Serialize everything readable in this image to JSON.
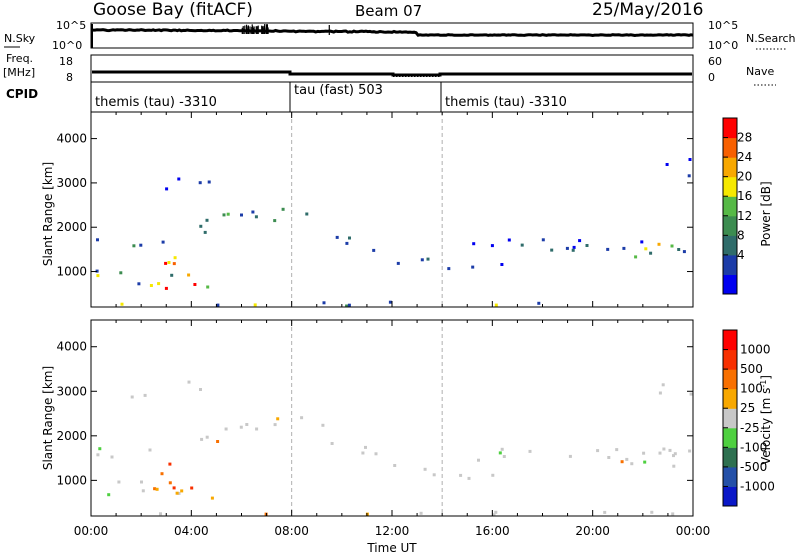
{
  "header": {
    "station": "Goose Bay (fitACF)",
    "beam": "Beam 07",
    "date": "25/May/2016"
  },
  "chart_data": [
    {
      "type": "line",
      "panel": "noise",
      "left_label": "N.Sky",
      "right_label": "N.Search",
      "left_ticks": [
        "10^5",
        "10^0"
      ],
      "right_ticks": [
        "10^5",
        "10^0"
      ],
      "yscale": "log"
    },
    {
      "type": "line",
      "panel": "frequency",
      "left_label": "Freq.",
      "left_unit": "[MHz]",
      "right_label": "Nave",
      "left_ticks": [
        "18",
        "8"
      ],
      "right_ticks": [
        "60",
        "0"
      ]
    },
    {
      "type": "table",
      "panel": "cpid",
      "label": "CPID",
      "segments": [
        {
          "start": "00:00",
          "end": "08:00",
          "text": "themis (tau) -3310"
        },
        {
          "start": "08:00",
          "end": "14:00",
          "text": "tau (fast) 503"
        },
        {
          "start": "14:00",
          "end": "24:00",
          "text": "themis (tau) -3310"
        }
      ]
    },
    {
      "type": "heatmap",
      "panel": "power",
      "ylabel": "Slant Range [km]",
      "xlim": [
        0,
        24
      ],
      "ylim": [
        200,
        4600
      ],
      "yticks": [
        1000,
        2000,
        3000,
        4000
      ],
      "colorbar_label": "Power [dB]",
      "colorbar_ticks": [
        "28",
        "24",
        "20",
        "16",
        "12",
        "8",
        "4"
      ],
      "colors": [
        "#0000f0",
        "#1c3ca8",
        "#2f6c6a",
        "#3c8c50",
        "#56b946",
        "#f6e800",
        "#f8a800",
        "#f86000",
        "#ff0000"
      ],
      "grid": true
    },
    {
      "type": "heatmap",
      "panel": "velocity",
      "ylabel": "Slant Range [km]",
      "xlabel": "Time UT",
      "xlim": [
        0,
        24
      ],
      "xticks": [
        "00:00",
        "04:00",
        "08:00",
        "12:00",
        "16:00",
        "20:00",
        "00:00"
      ],
      "ylim": [
        200,
        4600
      ],
      "yticks": [
        1000,
        2000,
        3000,
        4000
      ],
      "colorbar_label": "Velocity [m s",
      "colorbar_unit_exp": "-1",
      "colorbar_ticks": [
        "1000",
        "500",
        "100",
        "25",
        "-25",
        "-100",
        "-500",
        "-1000"
      ],
      "colors": [
        "#0a18c8",
        "#2450a8",
        "#2e7050",
        "#4ed040",
        "#c8c8c8",
        "#f8a800",
        "#f87000",
        "#f83000",
        "#ff0000"
      ],
      "grid": true
    }
  ]
}
